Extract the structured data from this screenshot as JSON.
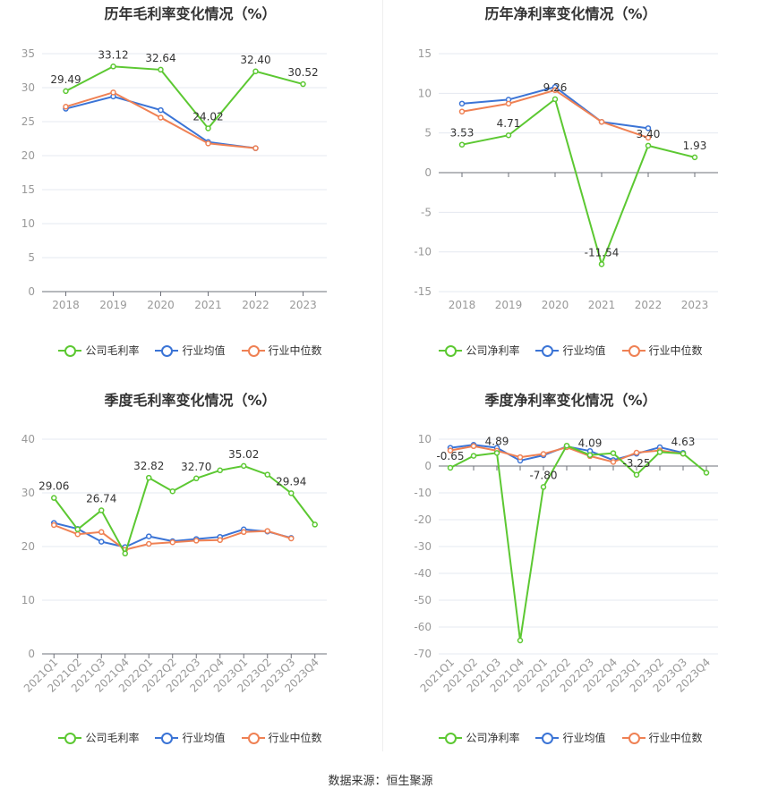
{
  "source": "数据来源：恒生聚源",
  "colors": {
    "company": "#5cc832",
    "avg": "#3b74d6",
    "median": "#ef8154",
    "grid": "#e4e8f0",
    "axis": "#999999"
  },
  "chart_data": [
    {
      "type": "line",
      "title": "历年毛利率变化情况（%）",
      "categories": [
        "2018",
        "2019",
        "2020",
        "2021",
        "2022",
        "2023"
      ],
      "ylim": [
        0,
        35
      ],
      "yticks": [
        0,
        5,
        10,
        15,
        20,
        25,
        30,
        35
      ],
      "ytick_labels": [
        "0",
        "5",
        "10",
        "15",
        "20",
        "25",
        "30",
        "35"
      ],
      "rotate_x": false,
      "series": [
        {
          "name": "公司毛利率",
          "key": "company",
          "values": [
            29.49,
            33.12,
            32.64,
            24.02,
            32.4,
            30.52
          ],
          "labels": [
            "29.49",
            "33.12",
            "32.64",
            "24.02",
            "32.40",
            "30.52"
          ]
        },
        {
          "name": "行业均值",
          "key": "avg",
          "values": [
            26.9,
            28.7,
            26.7,
            22.0,
            21.1,
            null
          ]
        },
        {
          "name": "行业中位数",
          "key": "median",
          "values": [
            27.2,
            29.3,
            25.6,
            21.8,
            21.1,
            null
          ]
        }
      ]
    },
    {
      "type": "line",
      "title": "历年净利率变化情况（%）",
      "categories": [
        "2018",
        "2019",
        "2020",
        "2021",
        "2022",
        "2023"
      ],
      "ylim": [
        -15,
        15
      ],
      "yticks": [
        -15,
        -10,
        -5,
        0,
        5,
        10,
        15
      ],
      "ytick_labels": [
        "-15",
        "-10",
        "-5",
        "0",
        "5",
        "10",
        "15"
      ],
      "rotate_x": false,
      "series": [
        {
          "name": "公司净利率",
          "key": "company",
          "values": [
            3.53,
            4.71,
            9.26,
            -11.54,
            3.4,
            1.93
          ],
          "labels": [
            "3.53",
            "4.71",
            "9.26",
            "-11.54",
            "3.40",
            "1.93"
          ]
        },
        {
          "name": "行业均值",
          "key": "avg",
          "values": [
            8.7,
            9.2,
            10.8,
            6.4,
            5.6,
            null
          ]
        },
        {
          "name": "行业中位数",
          "key": "median",
          "values": [
            7.7,
            8.7,
            10.4,
            6.4,
            4.4,
            null
          ]
        }
      ]
    },
    {
      "type": "line",
      "title": "季度毛利率变化情况（%）",
      "categories": [
        "2021Q1",
        "2021Q2",
        "2021Q3",
        "2021Q4",
        "2022Q1",
        "2022Q2",
        "2022Q3",
        "2022Q4",
        "2023Q1",
        "2023Q2",
        "2023Q3",
        "2023Q4"
      ],
      "ylim": [
        0,
        40
      ],
      "yticks": [
        0,
        10,
        20,
        30,
        40
      ],
      "ytick_labels": [
        "0",
        "10",
        "20",
        "30",
        "40"
      ],
      "rotate_x": true,
      "series": [
        {
          "name": "公司毛利率",
          "key": "company",
          "values": [
            29.06,
            23.2,
            26.74,
            18.7,
            32.82,
            30.3,
            32.7,
            34.2,
            35.02,
            33.4,
            29.94,
            24.1
          ],
          "labels": [
            "29.06",
            "",
            "26.74",
            "",
            "32.82",
            "",
            "32.70",
            "",
            "35.02",
            "",
            "29.94",
            ""
          ]
        },
        {
          "name": "行业均值",
          "key": "avg",
          "values": [
            24.4,
            23.3,
            20.9,
            19.9,
            21.9,
            21.0,
            21.4,
            21.8,
            23.2,
            22.8,
            21.6,
            null
          ]
        },
        {
          "name": "行业中位数",
          "key": "median",
          "values": [
            24.0,
            22.3,
            22.7,
            19.4,
            20.5,
            20.8,
            21.1,
            21.2,
            22.7,
            22.9,
            21.5,
            null
          ]
        }
      ]
    },
    {
      "type": "line",
      "title": "季度净利率变化情况（%）",
      "categories": [
        "2021Q1",
        "2021Q2",
        "2021Q3",
        "2021Q4",
        "2022Q1",
        "2022Q2",
        "2022Q3",
        "2022Q4",
        "2023Q1",
        "2023Q2",
        "2023Q3",
        "2023Q4"
      ],
      "ylim": [
        -70,
        10
      ],
      "yticks": [
        -70,
        -60,
        -50,
        -40,
        -30,
        -20,
        -10,
        0,
        10
      ],
      "ytick_labels": [
        "-70",
        "-60",
        "-50",
        "-40",
        "-30",
        "-20",
        "-10",
        "0",
        "10"
      ],
      "rotate_x": true,
      "series": [
        {
          "name": "公司净利率",
          "key": "company",
          "values": [
            -0.65,
            3.8,
            4.89,
            -65.0,
            -7.8,
            7.6,
            4.09,
            4.8,
            -3.25,
            5.2,
            4.63,
            -2.5
          ],
          "labels": [
            "-0.65",
            "",
            "4.89",
            "",
            "-7.80",
            "",
            "4.09",
            "",
            "-3.25",
            "",
            "4.63",
            ""
          ]
        },
        {
          "name": "行业均值",
          "key": "avg",
          "values": [
            6.8,
            7.9,
            6.8,
            2.0,
            4.0,
            7.3,
            5.6,
            2.2,
            4.6,
            7.0,
            4.9,
            null
          ]
        },
        {
          "name": "行业中位数",
          "key": "median",
          "values": [
            5.8,
            7.4,
            5.7,
            3.3,
            4.5,
            7.0,
            3.7,
            1.5,
            5.0,
            5.8,
            4.6,
            null
          ]
        }
      ]
    }
  ]
}
